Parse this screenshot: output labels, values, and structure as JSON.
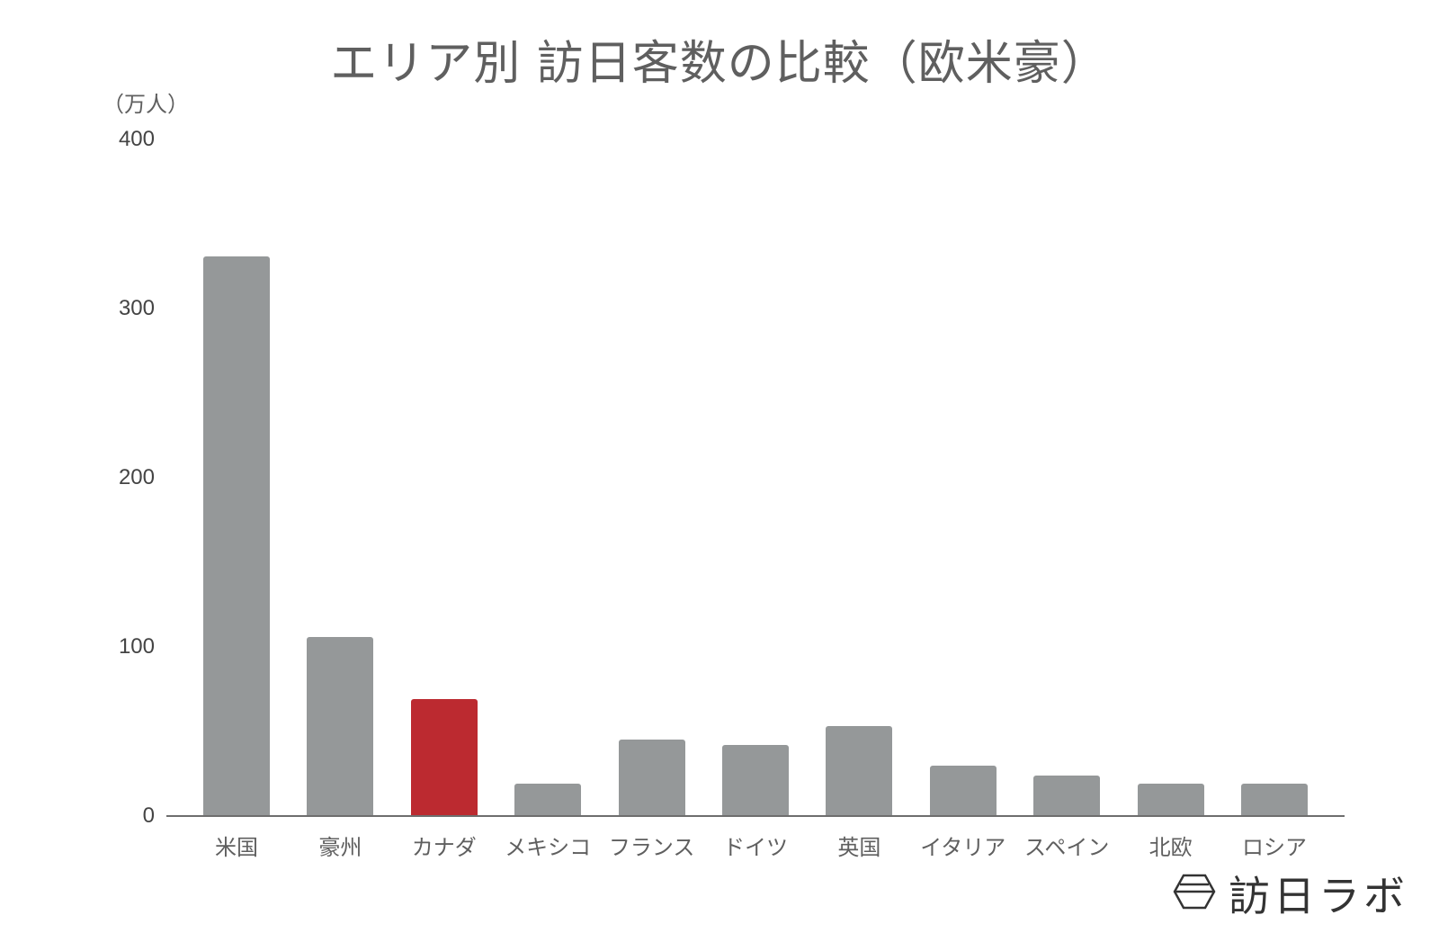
{
  "chart_data": {
    "type": "bar",
    "title": "エリア別 訪日客数の比較（欧米豪）",
    "xlabel": "",
    "ylabel": "（万人）",
    "ylim": [
      0,
      400
    ],
    "yticks": [
      "0",
      "100",
      "200",
      "300",
      "400"
    ],
    "grid": false,
    "legend": null,
    "categories": [
      "米国",
      "豪州",
      "カナダ",
      "メキシコ",
      "フランス",
      "ドイツ",
      "英国",
      "イタリア",
      "スペイン",
      "北欧",
      "ロシア"
    ],
    "values": [
      331,
      106,
      69,
      19,
      45,
      42,
      53,
      30,
      24,
      19,
      19
    ],
    "highlight_index": 2,
    "colors": {
      "default_bar": "#959899",
      "highlight_bar": "#BC2A30",
      "axis": "#6e6e6e",
      "text": "#5f5f5f"
    }
  },
  "branding": {
    "logo_icon": "hexagon-logo-icon",
    "text": "訪日ラボ"
  }
}
